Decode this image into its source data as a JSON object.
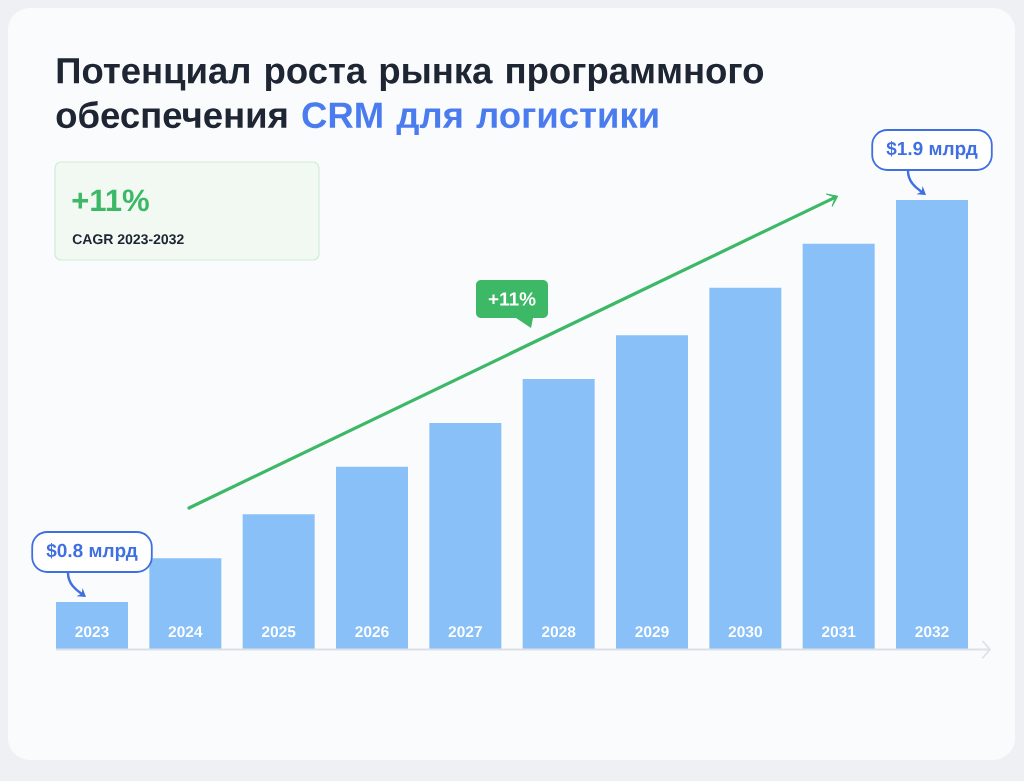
{
  "chart_data": {
    "type": "bar",
    "title": "Потенциал роста рынка программного обеспечения CRM для логистики",
    "categories": [
      "2023",
      "2024",
      "2025",
      "2026",
      "2027",
      "2028",
      "2029",
      "2030",
      "2031",
      "2032"
    ],
    "values": [
      0.8,
      0.92,
      1.04,
      1.17,
      1.29,
      1.41,
      1.53,
      1.66,
      1.78,
      1.9
    ],
    "color": "#8ac0f8",
    "ylim": [
      0.67,
      1.9
    ],
    "tick_labels": "x",
    "value_labels": [
      "$0.8 млрд",
      null,
      null,
      null,
      null,
      null,
      null,
      null,
      null,
      "$1.9 млрд"
    ],
    "annotations": [
      "+11%",
      "CAGR 2023-2032",
      "+11%"
    ]
  }
}
